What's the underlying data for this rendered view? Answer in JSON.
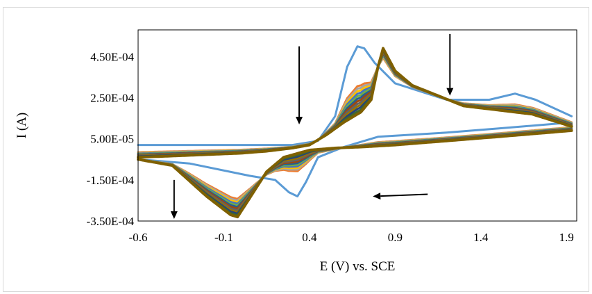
{
  "chart_data": {
    "type": "line",
    "title": "",
    "xlabel": "E (V) vs. SCE",
    "ylabel": "I (A)",
    "xlim": [
      -0.6,
      1.96
    ],
    "ylim": [
      -0.00035,
      0.00058
    ],
    "x_ticks": [
      -0.6,
      -0.1,
      0.4,
      0.9,
      1.4,
      1.9
    ],
    "x_tick_labels": [
      "-0.6",
      "-0.1",
      "0.4",
      "0.9",
      "1.4",
      "1.9"
    ],
    "y_ticks": [
      -0.00035,
      -0.00015,
      5e-05,
      0.00025,
      0.00045
    ],
    "y_tick_labels": [
      "-3.50E-04",
      "-1.50E-04",
      "5.00E-05",
      "2.50E-04",
      "4.50E-04"
    ],
    "grid": false,
    "legend": "none",
    "series_colors": [
      "#5b9bd5",
      "#ed7d31",
      "#a5a5a5",
      "#ffc000",
      "#4472c4",
      "#70ad47",
      "#255e91",
      "#9e480e",
      "#636363",
      "#997300",
      "#264478",
      "#43682b",
      "#7f6000"
    ],
    "first_scan": {
      "forward": [
        [
          -0.6,
          2e-05
        ],
        [
          0.3,
          2e-05
        ],
        [
          0.45,
          4e-05
        ],
        [
          0.55,
          0.00016
        ],
        [
          0.62,
          0.0004
        ],
        [
          0.68,
          0.0005
        ],
        [
          0.72,
          0.00049
        ],
        [
          0.78,
          0.00042
        ],
        [
          0.9,
          0.00032
        ],
        [
          1.2,
          0.00024
        ],
        [
          1.45,
          0.00024
        ],
        [
          1.6,
          0.00027
        ],
        [
          1.72,
          0.00024
        ],
        [
          1.93,
          0.00016
        ]
      ],
      "reverse": [
        [
          1.93,
          0.00013
        ],
        [
          1.5,
          0.0001
        ],
        [
          1.2,
          8e-05
        ],
        [
          0.9,
          6.5e-05
        ],
        [
          0.8,
          6e-05
        ],
        [
          0.6,
          1e-05
        ],
        [
          0.45,
          -4e-05
        ],
        [
          0.38,
          -0.00016
        ],
        [
          0.33,
          -0.00023
        ],
        [
          0.28,
          -0.00021
        ],
        [
          0.2,
          -0.00015
        ],
        [
          0.05,
          -0.00013
        ],
        [
          -0.3,
          -7e-05
        ],
        [
          -0.6,
          -5e-05
        ]
      ]
    },
    "last_scan": {
      "forward": [
        [
          -0.6,
          -4e-05
        ],
        [
          -0.3,
          -3e-05
        ],
        [
          0.0,
          -2e-05
        ],
        [
          0.15,
          -1e-05
        ],
        [
          0.3,
          5e-06
        ],
        [
          0.4,
          2e-05
        ],
        [
          0.5,
          7e-05
        ],
        [
          0.6,
          0.00013
        ],
        [
          0.7,
          0.00018
        ],
        [
          0.76,
          0.00024
        ],
        [
          0.8,
          0.0004
        ],
        [
          0.83,
          0.00049
        ],
        [
          0.9,
          0.00038
        ],
        [
          1.0,
          0.00031
        ],
        [
          1.3,
          0.00021
        ],
        [
          1.5,
          0.00019
        ],
        [
          1.7,
          0.00017
        ],
        [
          1.93,
          0.00011
        ]
      ],
      "reverse": [
        [
          1.93,
          9e-05
        ],
        [
          1.5,
          6e-05
        ],
        [
          1.2,
          4e-05
        ],
        [
          0.9,
          2e-05
        ],
        [
          0.7,
          1e-05
        ],
        [
          0.55,
          5e-06
        ],
        [
          0.4,
          -5e-06
        ],
        [
          0.25,
          -4e-05
        ],
        [
          0.15,
          -0.00011
        ],
        [
          0.05,
          -0.00024
        ],
        [
          -0.02,
          -0.00033
        ],
        [
          -0.06,
          -0.00032
        ],
        [
          -0.2,
          -0.00023
        ],
        [
          -0.4,
          -8e-05
        ],
        [
          -0.6,
          -5e-05
        ]
      ]
    },
    "annotations": [
      {
        "type": "arrow",
        "direction": "down",
        "from": [
          0.34,
          0.0005
        ],
        "to": [
          0.34,
          0.00012
        ]
      },
      {
        "type": "arrow",
        "direction": "down",
        "from": [
          1.22,
          0.00056
        ],
        "to": [
          1.22,
          0.00026
        ]
      },
      {
        "type": "arrow",
        "direction": "left",
        "from": [
          1.09,
          -0.00022
        ],
        "to": [
          0.77,
          -0.00023
        ]
      },
      {
        "type": "arrow",
        "direction": "down",
        "from": [
          -0.39,
          -0.00015
        ],
        "to": [
          -0.39,
          -0.00034
        ]
      }
    ]
  }
}
